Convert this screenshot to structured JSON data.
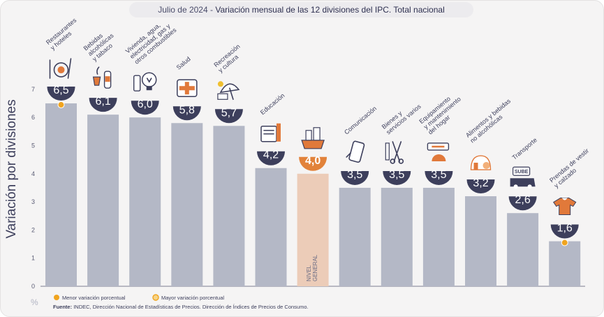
{
  "header": {
    "date": "Julio de 2024",
    "separator": "-",
    "title": "Variación mensual de las 12 divisiones del IPC. Total nacional"
  },
  "footer": {
    "source_label": "Fuente:",
    "source_text": "INDEC, Dirección Nacional de Estadísticas de Precios. Dirección de Índices de Precios de Consumo."
  },
  "legend": {
    "min_label": "Menor variación porcentual",
    "max_label": "Mayor variación porcentual"
  },
  "colors": {
    "bar": "#b4b8c6",
    "highlight_bar": "#ecccb8",
    "badge": "#3d3f5c",
    "highlight_badge": "#e2823a",
    "marker": "#f0a41f",
    "icon_accent": "#e1793a"
  },
  "chart_data": {
    "type": "bar",
    "ylabel": "Variación por divisiones",
    "unit_label": "%",
    "ylim": [
      0,
      7
    ],
    "yticks": [
      0,
      1,
      2,
      3,
      4,
      5,
      6,
      7
    ],
    "grid": false,
    "categories": [
      "Restaurantes y hoteles",
      "Bebidas alcohólicas y tabaco",
      "Vivienda, agua, electricidad, gas y otros combustibles",
      "Salud",
      "Recreación y cultura",
      "Educación",
      "NIVEL GENERAL",
      "Comunicación",
      "Bienes y servicios varios",
      "Equipamiento y mantenimiento del hogar",
      "Alimentos y bebidas no alcohólicas",
      "Transporte",
      "Prendas de vestir y calzado"
    ],
    "category_label_lines": [
      [
        "Restaurantes",
        "y hoteles"
      ],
      [
        "Bebidas",
        "alcohólicas",
        "y tabaco"
      ],
      [
        "Vivienda, agua,",
        "electricidad, gas y",
        "otros combustibles"
      ],
      [
        "Salud"
      ],
      [
        "Recreación",
        "y cultura"
      ],
      [
        "Educación"
      ],
      [],
      [
        "Comunicación"
      ],
      [
        "Bienes y",
        "servicios varios"
      ],
      [
        "Equipamiento",
        "y mantenimiento",
        "del hogar"
      ],
      [
        "Alimentos y bebidas",
        "no alcohólicas"
      ],
      [
        "Transporte"
      ],
      [
        "Prendas de vestir",
        "y calzado"
      ]
    ],
    "in_bar_label_lines": [
      "NIVEL",
      "GENERAL"
    ],
    "values": [
      6.5,
      6.1,
      6.0,
      5.8,
      5.7,
      4.2,
      4.0,
      3.5,
      3.5,
      3.5,
      3.2,
      2.6,
      1.6
    ],
    "value_labels": [
      "6,5",
      "6,1",
      "6,0",
      "5,8",
      "5,7",
      "4,2",
      "4,0",
      "3,5",
      "3,5",
      "3,5",
      "3,2",
      "2,6",
      "1,6"
    ],
    "highlight_index": 6,
    "max_marker_index": 0,
    "min_marker_index": 12,
    "icons": [
      "utensils-icon",
      "wine-bottle-icon",
      "house-bulb-icon",
      "first-aid-kit-icon",
      "beach-umbrella-icon",
      "books-icon",
      "shopping-bag-icon",
      "smartphone-icon",
      "comb-scissors-icon",
      "stove-icon",
      "grocery-icon",
      "sube-card-bus-icon",
      "tshirt-icon"
    ]
  }
}
